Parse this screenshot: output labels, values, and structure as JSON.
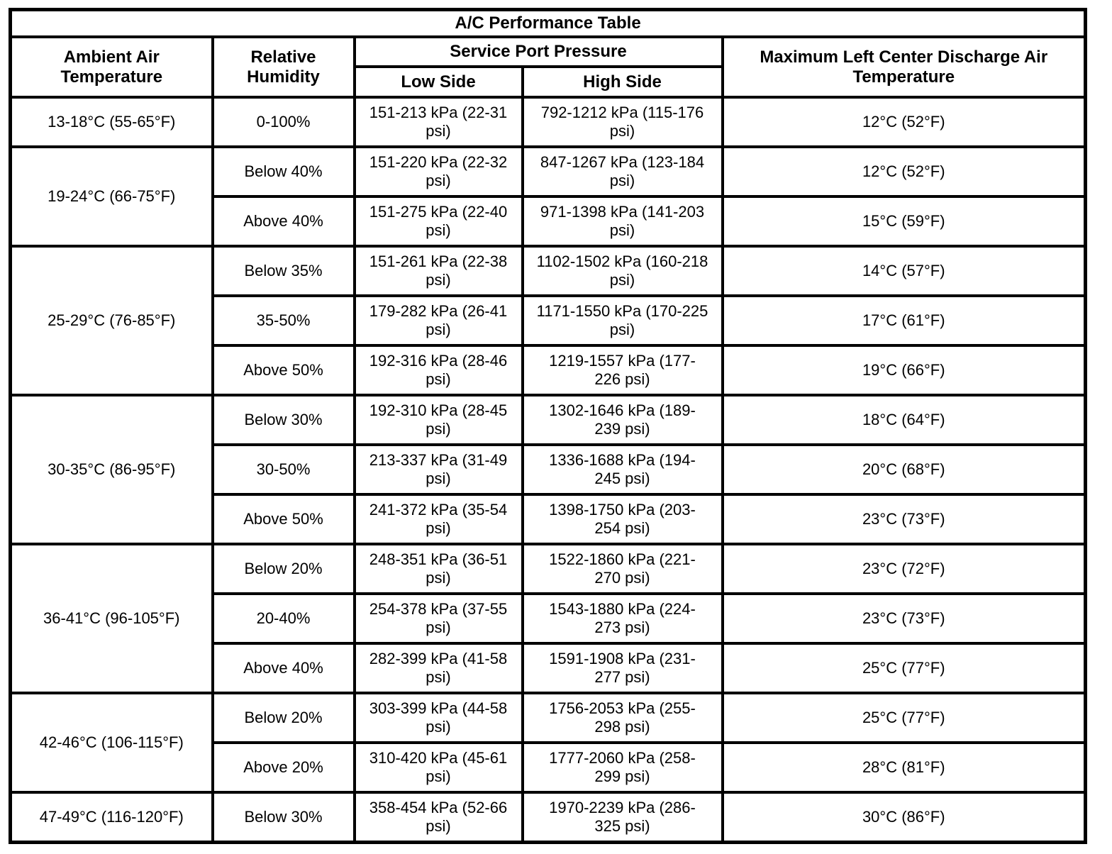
{
  "table": {
    "title": "A/C Performance Table",
    "headers": {
      "ambient_air": "Ambient Air Temperature",
      "relative_humidity": "Relative Humidity",
      "service_port_pressure": "Service Port Pressure",
      "low_side": "Low Side",
      "high_side": "High Side",
      "max_discharge": "Maximum Left Center Discharge Air Temperature"
    },
    "groups": [
      {
        "ambient": "13-18°C (55-65°F)",
        "rows": [
          {
            "humidity": "0-100%",
            "low": "151-213 kPa (22-31 psi)",
            "high": "792-1212 kPa (115-176 psi)",
            "discharge": "12°C (52°F)"
          }
        ]
      },
      {
        "ambient": "19-24°C (66-75°F)",
        "rows": [
          {
            "humidity": "Below 40%",
            "low": "151-220 kPa (22-32 psi)",
            "high": "847-1267 kPa (123-184 psi)",
            "discharge": "12°C (52°F)"
          },
          {
            "humidity": "Above 40%",
            "low": "151-275 kPa (22-40 psi)",
            "high": "971-1398 kPa (141-203 psi)",
            "discharge": "15°C (59°F)"
          }
        ]
      },
      {
        "ambient": "25-29°C (76-85°F)",
        "rows": [
          {
            "humidity": "Below 35%",
            "low": "151-261 kPa (22-38 psi)",
            "high": "1102-1502 kPa (160-218 psi)",
            "discharge": "14°C (57°F)"
          },
          {
            "humidity": "35-50%",
            "low": "179-282 kPa (26-41 psi)",
            "high": "1171-1550 kPa (170-225 psi)",
            "discharge": "17°C (61°F)"
          },
          {
            "humidity": "Above 50%",
            "low": "192-316 kPa (28-46 psi)",
            "high": "1219-1557 kPa (177-226 psi)",
            "discharge": "19°C (66°F)"
          }
        ]
      },
      {
        "ambient": "30-35°C (86-95°F)",
        "rows": [
          {
            "humidity": "Below 30%",
            "low": "192-310 kPa (28-45 psi)",
            "high": "1302-1646 kPa (189-239 psi)",
            "discharge": "18°C (64°F)"
          },
          {
            "humidity": "30-50%",
            "low": "213-337 kPa (31-49 psi)",
            "high": "1336-1688 kPa (194-245 psi)",
            "discharge": "20°C (68°F)"
          },
          {
            "humidity": "Above 50%",
            "low": "241-372 kPa (35-54 psi)",
            "high": "1398-1750 kPa (203-254 psi)",
            "discharge": "23°C (73°F)"
          }
        ]
      },
      {
        "ambient": "36-41°C (96-105°F)",
        "rows": [
          {
            "humidity": "Below 20%",
            "low": "248-351 kPa (36-51 psi)",
            "high": "1522-1860 kPa (221-270 psi)",
            "discharge": "23°C (72°F)"
          },
          {
            "humidity": "20-40%",
            "low": "254-378 kPa (37-55 psi)",
            "high": "1543-1880 kPa (224-273 psi)",
            "discharge": "23°C (73°F)"
          },
          {
            "humidity": "Above 40%",
            "low": "282-399 kPa (41-58 psi)",
            "high": "1591-1908 kPa (231-277 psi)",
            "discharge": "25°C (77°F)"
          }
        ]
      },
      {
        "ambient": "42-46°C (106-115°F)",
        "rows": [
          {
            "humidity": "Below 20%",
            "low": "303-399 kPa (44-58 psi)",
            "high": "1756-2053 kPa (255-298 psi)",
            "discharge": "25°C (77°F)"
          },
          {
            "humidity": "Above 20%",
            "low": "310-420 kPa (45-61 psi)",
            "high": "1777-2060 kPa (258-299 psi)",
            "discharge": "28°C (81°F)"
          }
        ]
      },
      {
        "ambient": "47-49°C (116-120°F)",
        "rows": [
          {
            "humidity": "Below 30%",
            "low": "358-454 kPa (52-66 psi)",
            "high": "1970-2239 kPa (286-325 psi)",
            "discharge": "30°C (86°F)"
          }
        ]
      }
    ]
  }
}
